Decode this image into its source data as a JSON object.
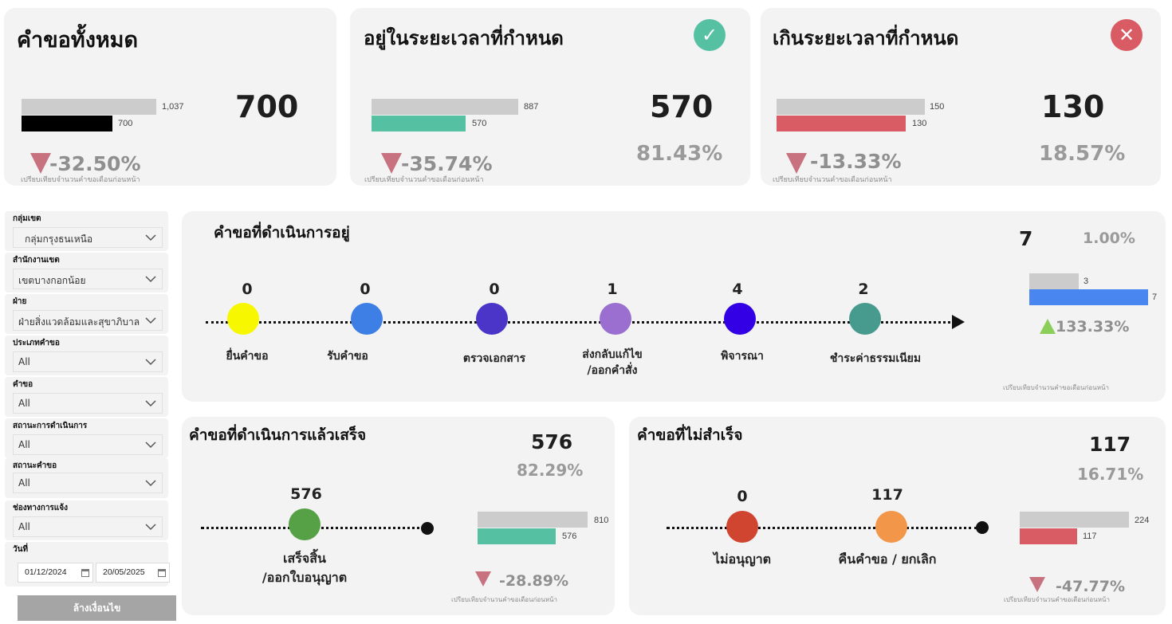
{
  "kpi_total": {
    "title": "คำขอทั้งหมด",
    "value": "700",
    "prev_bar": "1,037",
    "curr_bar": "700",
    "prev_value": 1037,
    "curr_value": 700,
    "change": "-32.50%",
    "note": "เปรียบเทียบจำนวนคำขอเดือนก่อนหน้า",
    "bar_color": "#000000"
  },
  "kpi_ontime": {
    "title": "อยู่ในระยะเวลาที่กำหนด",
    "value": "570",
    "percent": "81.43%",
    "prev_bar": "887",
    "curr_bar": "570",
    "prev_value": 887,
    "curr_value": 570,
    "change": "-35.74%",
    "note": "เปรียบเทียบจำนวนคำขอเดือนก่อนหน้า",
    "icon": "check-circle-icon",
    "icon_color": "#56c0a3",
    "bar_color": "#56c0a3"
  },
  "kpi_overdue": {
    "title": "เกินระยะเวลาที่กำหนด",
    "value": "130",
    "percent": "18.57%",
    "prev_bar": "150",
    "curr_bar": "130",
    "prev_value": 150,
    "curr_value": 130,
    "change": "-13.33%",
    "note": "เปรียบเทียบจำนวนคำขอเดือนก่อนหน้า",
    "icon": "x-circle-icon",
    "icon_color": "#d95c64",
    "bar_color": "#d95c64"
  },
  "filters": {
    "zone_group": {
      "label": "กลุ่มเขต",
      "value": "กลุ่มกรุงธนเหนือ"
    },
    "district_office": {
      "label": "สำนักงานเขต",
      "value": "เขตบางกอกน้อย"
    },
    "department": {
      "label": "ฝ่าย",
      "value": "ฝ่ายสิ่งแวดล้อมและสุขาภิบาล"
    },
    "request_type": {
      "label": "ประเภทคำขอ",
      "value": "All"
    },
    "request": {
      "label": "คำขอ",
      "value": "All"
    },
    "process_status": {
      "label": "สถานะการดำเนินการ",
      "value": "All"
    },
    "request_status": {
      "label": "สถานะคำขอ",
      "value": "All"
    },
    "channel": {
      "label": "ช่องทางการแจ้ง",
      "value": "All"
    },
    "date": {
      "label": "วันที่",
      "start": "01/12/2024",
      "end": "20/05/2025"
    },
    "clear_button": "ล้างเงื่อนไข"
  },
  "in_progress": {
    "title": "คำขอที่ดำเนินการอยู่",
    "value": "7",
    "percent": "1.00%",
    "prev_bar": "3",
    "curr_bar": "7",
    "prev_value": 3,
    "curr_value": 7,
    "change": "133.33%",
    "note": "เปรียบเทียบจำนวนคำขอเดือนก่อนหน้า",
    "bar_color": "#4a86f0",
    "stages": [
      {
        "count": "0",
        "label1": "ยื่นคำขอ",
        "label2": "",
        "color": "#f7f700"
      },
      {
        "count": "0",
        "label1": "รับคำขอ",
        "label2": "",
        "color": "#3e7fe6"
      },
      {
        "count": "0",
        "label1": "ตรวจเอกสาร",
        "label2": "",
        "color": "#4a35c8"
      },
      {
        "count": "1",
        "label1": "ส่งกลับแก้ไข",
        "label2": "/ออกคำสั่ง",
        "color": "#9b6fd0"
      },
      {
        "count": "4",
        "label1": "พิจารณา",
        "label2": "",
        "color": "#3300e6"
      },
      {
        "count": "2",
        "label1": "ชำระค่าธรรมเนียม",
        "label2": "",
        "color": "#479a8e"
      }
    ]
  },
  "completed": {
    "title": "คำขอที่ดำเนินการแล้วเสร็จ",
    "value": "576",
    "percent": "82.29%",
    "prev_bar": "810",
    "curr_bar": "576",
    "prev_value": 810,
    "curr_value": 576,
    "change": "-28.89%",
    "note": "เปรียบเทียบจำนวนคำขอเดือนก่อนหน้า",
    "bar_color": "#56c0a3",
    "stage": {
      "count": "576",
      "label1": "เสร็จสิ้น",
      "label2": "/ออกใบอนุญาต",
      "color": "#56a046"
    }
  },
  "not_completed": {
    "title": "คำขอที่ไม่สำเร็จ",
    "value": "117",
    "percent": "16.71%",
    "prev_bar": "224",
    "curr_bar": "117",
    "prev_value": 224,
    "curr_value": 117,
    "change": "-47.77%",
    "note": "เปรียบเทียบจำนวนคำขอเดือนก่อนหน้า",
    "bar_color": "#d95c64",
    "stages": [
      {
        "count": "0",
        "label": "ไม่อนุญาต",
        "color": "#cf452f"
      },
      {
        "count": "117",
        "label": "คืนคำขอ / ยกเลิก",
        "color": "#f2974a"
      }
    ]
  }
}
